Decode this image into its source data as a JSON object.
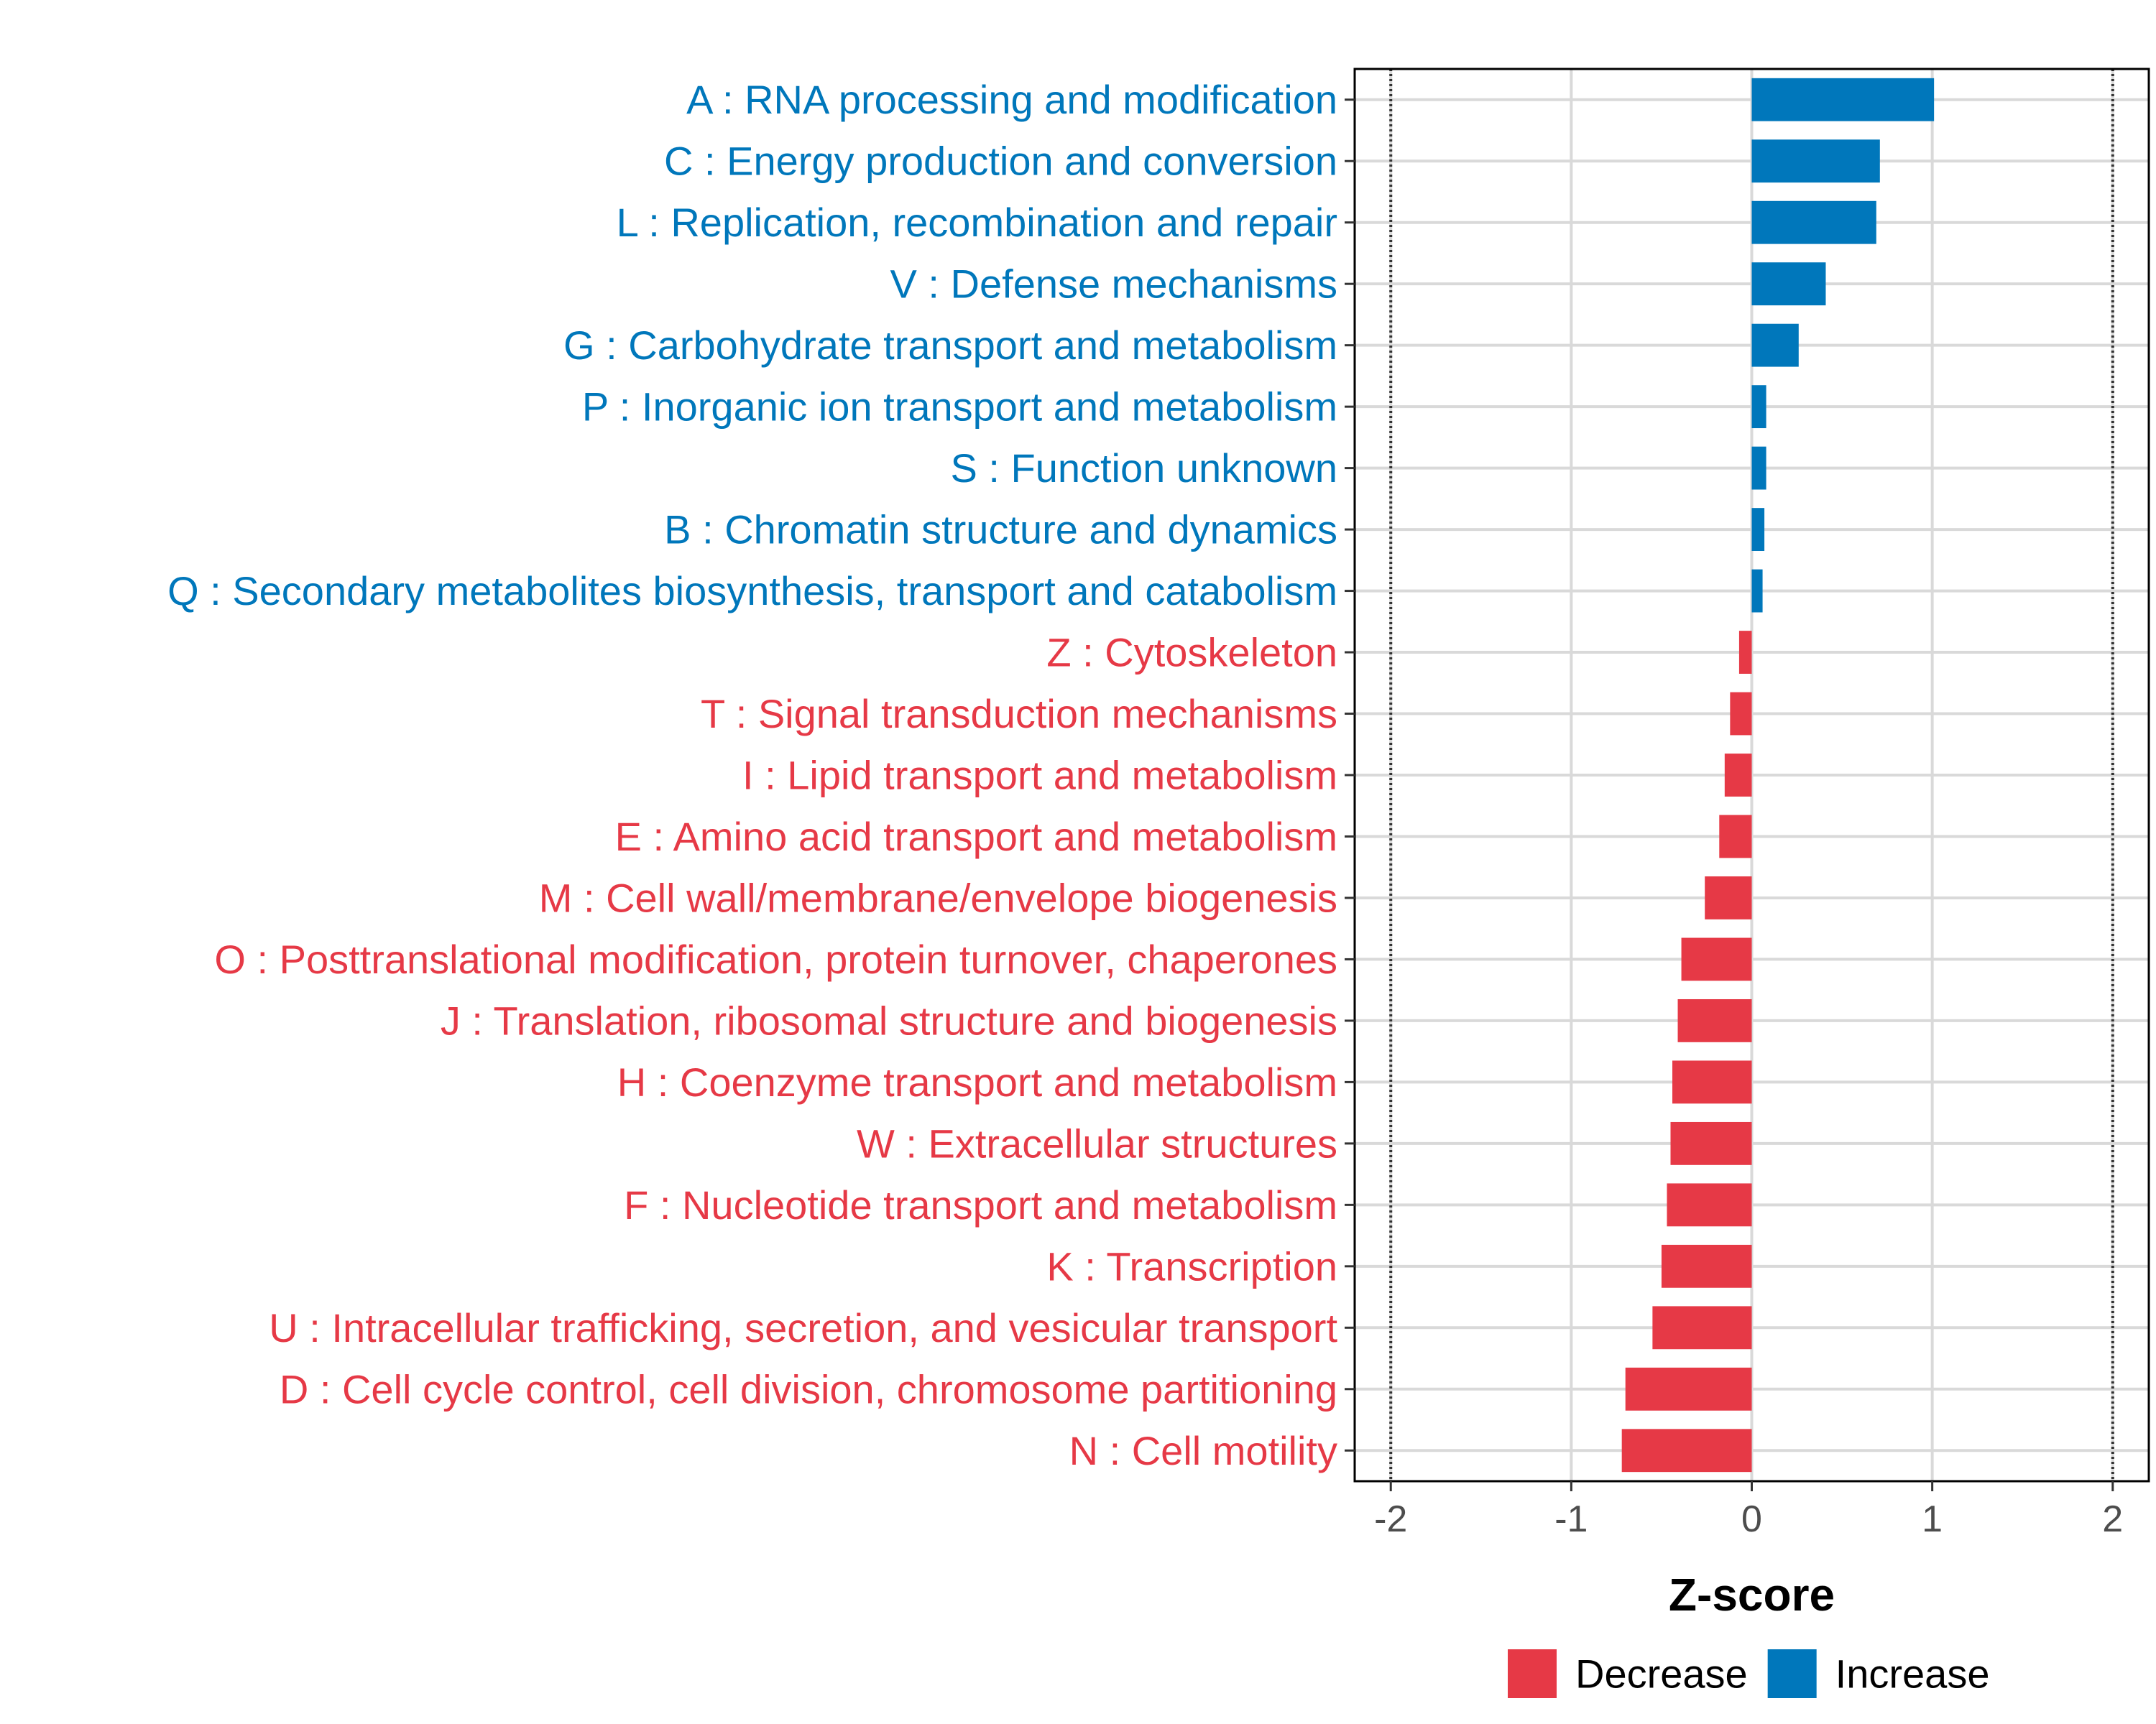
{
  "chart_data": {
    "type": "bar",
    "orientation": "horizontal",
    "title": "",
    "xlabel": "Z-score",
    "ylabel": "",
    "xlim": [
      -2.2,
      2.2
    ],
    "xticks": [
      -2,
      -1,
      0,
      1,
      2
    ],
    "xtick_labels": [
      "-2",
      "-1",
      "0",
      "1",
      "2"
    ],
    "reference_lines": [
      -2,
      2
    ],
    "grid": true,
    "legend_position": "bottom",
    "legend": [
      {
        "key": "decrease",
        "label": "Decrease",
        "color": "#e63946"
      },
      {
        "key": "increase",
        "label": "Increase",
        "color": "#0077bb"
      }
    ],
    "bars": [
      {
        "label": "A : RNA processing and modification",
        "value": 1.01,
        "group": "increase"
      },
      {
        "label": "C : Energy production and conversion",
        "value": 0.71,
        "group": "increase"
      },
      {
        "label": "L : Replication, recombination and repair",
        "value": 0.69,
        "group": "increase"
      },
      {
        "label": "V : Defense mechanisms",
        "value": 0.41,
        "group": "increase"
      },
      {
        "label": "G : Carbohydrate transport and metabolism",
        "value": 0.26,
        "group": "increase"
      },
      {
        "label": "P : Inorganic ion transport and metabolism",
        "value": 0.08,
        "group": "increase"
      },
      {
        "label": "S : Function unknown",
        "value": 0.08,
        "group": "increase"
      },
      {
        "label": "B : Chromatin structure and dynamics",
        "value": 0.07,
        "group": "increase"
      },
      {
        "label": "Q : Secondary metabolites biosynthesis, transport and catabolism",
        "value": 0.06,
        "group": "increase"
      },
      {
        "label": "Z : Cytoskeleton",
        "value": -0.07,
        "group": "decrease"
      },
      {
        "label": "T : Signal transduction mechanisms",
        "value": -0.12,
        "group": "decrease"
      },
      {
        "label": "I : Lipid transport and metabolism",
        "value": -0.15,
        "group": "decrease"
      },
      {
        "label": "E : Amino acid transport and metabolism",
        "value": -0.18,
        "group": "decrease"
      },
      {
        "label": "M : Cell wall/membrane/envelope biogenesis",
        "value": -0.26,
        "group": "decrease"
      },
      {
        "label": "O : Posttranslational modification, protein turnover, chaperones",
        "value": -0.39,
        "group": "decrease"
      },
      {
        "label": "J : Translation, ribosomal structure and biogenesis",
        "value": -0.41,
        "group": "decrease"
      },
      {
        "label": "H : Coenzyme transport and metabolism",
        "value": -0.44,
        "group": "decrease"
      },
      {
        "label": "W : Extracellular structures",
        "value": -0.45,
        "group": "decrease"
      },
      {
        "label": "F : Nucleotide transport and metabolism",
        "value": -0.47,
        "group": "decrease"
      },
      {
        "label": "K : Transcription",
        "value": -0.5,
        "group": "decrease"
      },
      {
        "label": "U : Intracellular trafficking, secretion, and vesicular transport",
        "value": -0.55,
        "group": "decrease"
      },
      {
        "label": "D : Cell cycle control, cell division, chromosome partitioning",
        "value": -0.7,
        "group": "decrease"
      },
      {
        "label": "N : Cell motility",
        "value": -0.72,
        "group": "decrease"
      }
    ]
  }
}
